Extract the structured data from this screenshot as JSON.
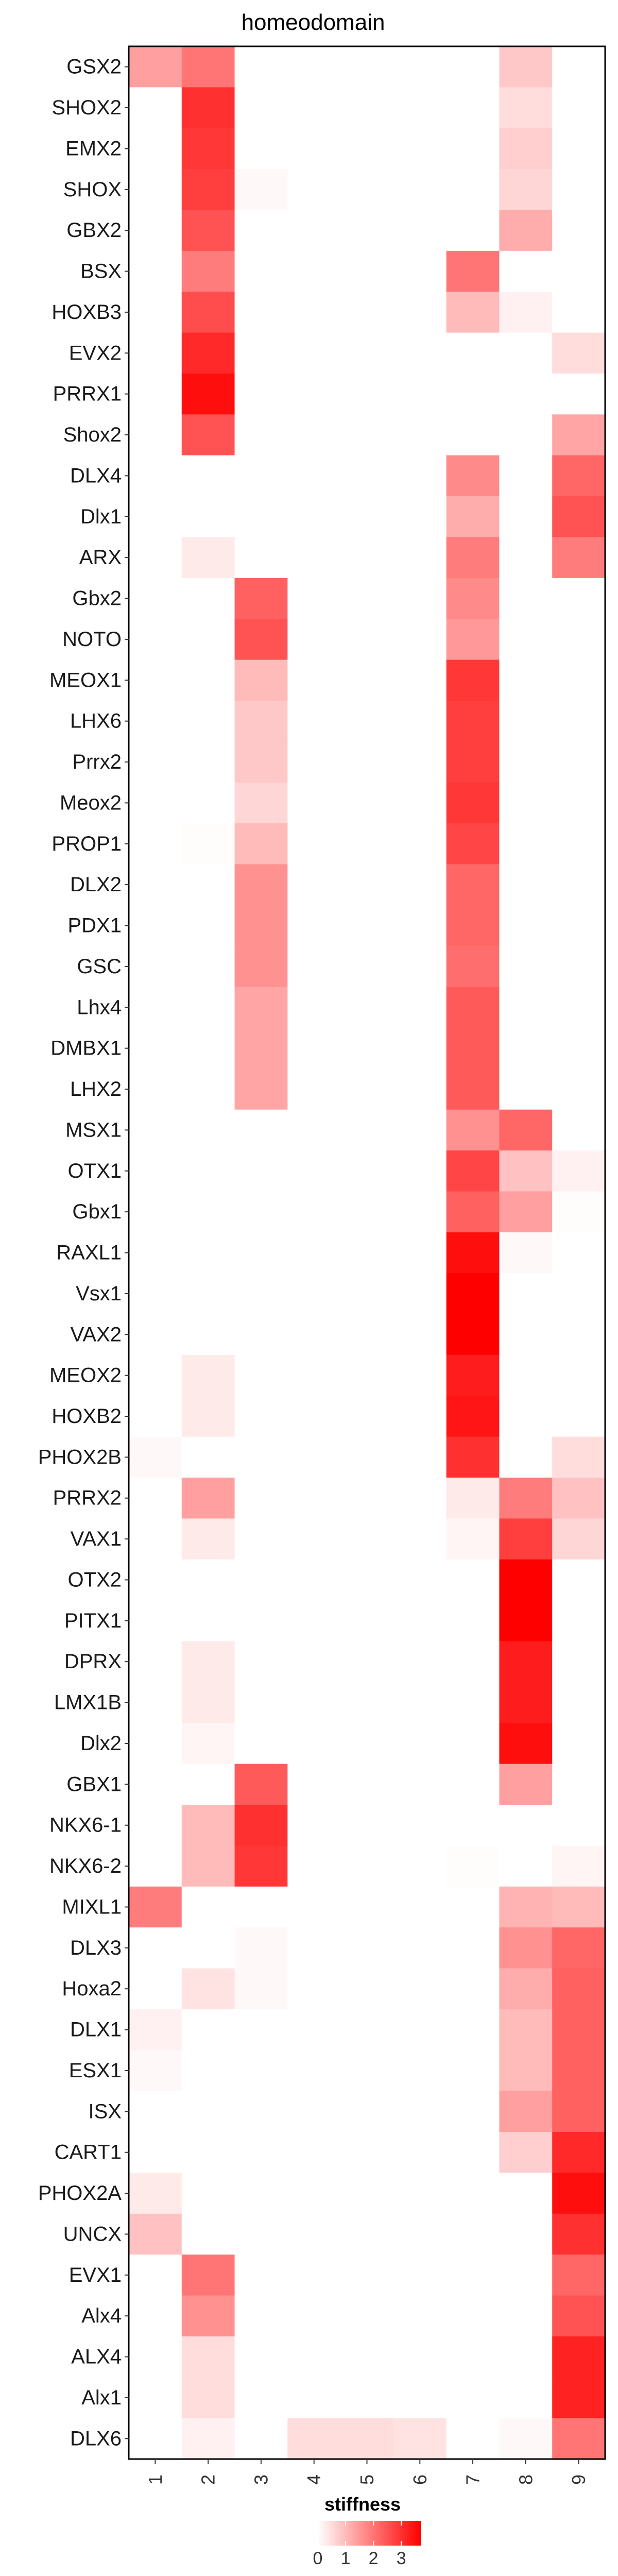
{
  "chart_data": {
    "type": "heatmap",
    "title": "homeodomain",
    "xlabel": "",
    "ylabel": "",
    "columns": [
      "1",
      "2",
      "3",
      "4",
      "5",
      "6",
      "7",
      "8",
      "9"
    ],
    "rows": [
      "GSX2",
      "SHOX2",
      "EMX2",
      "SHOX",
      "GBX2",
      "BSX",
      "HOXB3",
      "EVX2",
      "PRRX1",
      "Shox2",
      "DLX4",
      "Dlx1",
      "ARX",
      "Gbx2",
      "NOTO",
      "MEOX1",
      "LHX6",
      "Prrx2",
      "Meox2",
      "PROP1",
      "DLX2",
      "PDX1",
      "GSC",
      "Lhx4",
      "DMBX1",
      "LHX2",
      "MSX1",
      "OTX1",
      "Gbx1",
      "RAXL1",
      "Vsx1",
      "VAX2",
      "MEOX2",
      "HOXB2",
      "PHOX2B",
      "PRRX2",
      "VAX1",
      "OTX2",
      "PITX1",
      "DPRX",
      "LMX1B",
      "Dlx2",
      "GBX1",
      "NKX6-1",
      "NKX6-2",
      "MIXL1",
      "DLX3",
      "Hoxa2",
      "DLX1",
      "ESX1",
      "ISX",
      "CART1",
      "PHOX2A",
      "UNCX",
      "EVX1",
      "Alx4",
      "ALX4",
      "Alx1",
      "DLX6"
    ],
    "values": [
      [
        1.4,
        2.0,
        0,
        0,
        0,
        0,
        0,
        0.8,
        0
      ],
      [
        0,
        3.0,
        0,
        0,
        0,
        0,
        0,
        0.5,
        0
      ],
      [
        0,
        2.9,
        0,
        0,
        0,
        0,
        0,
        0.7,
        0
      ],
      [
        0,
        2.8,
        0.1,
        0,
        0,
        0,
        0,
        0.6,
        0
      ],
      [
        0,
        2.5,
        0,
        0,
        0,
        0,
        0,
        1.2,
        0
      ],
      [
        0,
        1.9,
        0,
        0,
        0,
        0,
        2.0,
        0,
        0
      ],
      [
        0,
        2.6,
        0,
        0,
        0,
        0,
        1.0,
        0.2,
        0
      ],
      [
        0,
        3.1,
        0,
        0,
        0,
        0,
        0,
        0,
        0.5
      ],
      [
        0,
        3.5,
        0,
        0,
        0,
        0,
        0,
        0,
        0
      ],
      [
        0,
        2.5,
        0,
        0,
        0,
        0,
        0,
        0,
        1.3
      ],
      [
        0,
        0,
        0,
        0,
        0,
        0,
        1.7,
        0,
        2.2
      ],
      [
        0,
        0,
        0,
        0,
        0,
        0,
        1.2,
        0,
        2.5
      ],
      [
        0,
        0.3,
        0,
        0,
        0,
        0,
        1.9,
        0,
        1.9
      ],
      [
        0,
        0,
        2.3,
        0,
        0,
        0,
        1.7,
        0,
        0
      ],
      [
        0,
        0,
        2.5,
        0,
        0,
        0,
        1.5,
        0,
        0
      ],
      [
        0,
        0,
        1.0,
        0,
        0,
        0,
        2.9,
        0,
        0
      ],
      [
        0,
        0,
        0.8,
        0,
        0,
        0,
        2.8,
        0,
        0
      ],
      [
        0,
        0,
        0.8,
        0,
        0,
        0,
        2.8,
        0,
        0
      ],
      [
        0,
        0,
        0.6,
        0,
        0,
        0,
        2.9,
        0,
        0
      ],
      [
        0,
        0.05,
        1.0,
        0,
        0,
        0,
        2.7,
        0,
        0
      ],
      [
        0,
        0,
        1.6,
        0,
        0,
        0,
        2.2,
        0,
        0
      ],
      [
        0,
        0,
        1.6,
        0,
        0,
        0,
        2.2,
        0,
        0
      ],
      [
        0,
        0,
        1.6,
        0,
        0,
        0,
        2.1,
        0,
        0
      ],
      [
        0,
        0,
        1.3,
        0,
        0,
        0,
        2.4,
        0,
        0
      ],
      [
        0,
        0,
        1.3,
        0,
        0,
        0,
        2.4,
        0,
        0
      ],
      [
        0,
        0,
        1.3,
        0,
        0,
        0,
        2.4,
        0,
        0
      ],
      [
        0,
        0,
        0,
        0,
        0,
        0,
        1.6,
        2.2,
        0
      ],
      [
        0,
        0,
        0,
        0,
        0,
        0,
        2.7,
        0.9,
        0.2
      ],
      [
        0,
        0,
        0,
        0,
        0,
        0,
        2.3,
        1.4,
        0.05
      ],
      [
        0,
        0,
        0,
        0,
        0,
        0,
        3.5,
        0.1,
        0
      ],
      [
        0,
        0,
        0,
        0,
        0,
        0,
        3.7,
        0,
        0
      ],
      [
        0,
        0,
        0,
        0,
        0,
        0,
        3.7,
        0,
        0
      ],
      [
        0,
        0.3,
        0,
        0,
        0,
        0,
        3.3,
        0,
        0
      ],
      [
        0,
        0.3,
        0,
        0,
        0,
        0,
        3.4,
        0,
        0
      ],
      [
        0.1,
        0,
        0,
        0,
        0,
        0,
        3.0,
        0,
        0.5
      ],
      [
        0,
        1.4,
        0,
        0,
        0,
        0,
        0.3,
        1.9,
        0.9
      ],
      [
        0,
        0.3,
        0,
        0,
        0,
        0,
        0.15,
        2.8,
        0.6
      ],
      [
        0,
        0,
        0,
        0,
        0,
        0,
        0,
        3.7,
        0
      ],
      [
        0,
        0,
        0,
        0,
        0,
        0,
        0,
        3.7,
        0
      ],
      [
        0,
        0.3,
        0,
        0,
        0,
        0,
        0,
        3.3,
        0
      ],
      [
        0,
        0.3,
        0,
        0,
        0,
        0,
        0,
        3.3,
        0
      ],
      [
        0,
        0.15,
        0,
        0,
        0,
        0,
        0,
        3.5,
        0
      ],
      [
        0,
        0,
        2.4,
        0,
        0,
        0,
        0,
        1.4,
        0
      ],
      [
        0,
        1.0,
        3.0,
        0,
        0,
        0,
        0,
        0,
        0
      ],
      [
        0,
        1.0,
        2.9,
        0,
        0,
        0,
        0.05,
        0,
        0.15
      ],
      [
        1.9,
        0,
        0,
        0,
        0,
        0,
        0,
        1.1,
        1.0
      ],
      [
        0,
        0,
        0.1,
        0,
        0,
        0,
        0,
        1.6,
        2.2
      ],
      [
        0,
        0.4,
        0.1,
        0,
        0,
        0,
        0,
        1.2,
        2.3
      ],
      [
        0.2,
        0,
        0,
        0,
        0,
        0,
        0,
        1.0,
        2.3
      ],
      [
        0.1,
        0,
        0,
        0,
        0,
        0,
        0,
        1.0,
        2.3
      ],
      [
        0,
        0,
        0,
        0,
        0,
        0,
        0,
        1.4,
        2.3
      ],
      [
        0,
        0,
        0,
        0,
        0,
        0,
        0,
        0.7,
        3.1
      ],
      [
        0.3,
        0,
        0,
        0,
        0,
        0,
        0,
        0,
        3.5
      ],
      [
        0.9,
        0,
        0,
        0,
        0,
        0,
        0,
        0,
        3.0
      ],
      [
        0,
        2.0,
        0,
        0,
        0,
        0,
        0,
        0,
        2.2
      ],
      [
        0,
        1.6,
        0,
        0,
        0,
        0,
        0,
        0,
        2.5
      ],
      [
        0,
        0.5,
        0,
        0,
        0,
        0,
        0,
        0,
        3.2
      ],
      [
        0,
        0.5,
        0,
        0,
        0,
        0,
        0,
        0,
        3.2
      ],
      [
        0,
        0.2,
        0,
        0.5,
        0.5,
        0.4,
        0,
        0.1,
        2.0
      ]
    ],
    "legend": {
      "title": "stiffness",
      "ticks": [
        0,
        1,
        2,
        3
      ],
      "range": [
        0,
        3.7
      ],
      "color_low": "#ffffff",
      "color_high": "#ff0000",
      "position": "bottom"
    },
    "grid": false
  }
}
